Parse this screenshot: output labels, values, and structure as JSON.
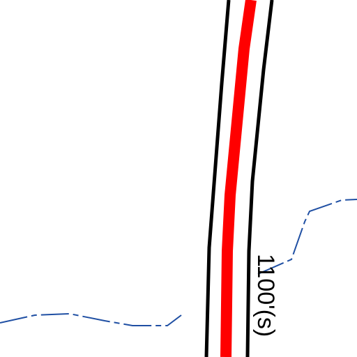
{
  "map": {
    "road_label": "1100'(s)"
  }
}
